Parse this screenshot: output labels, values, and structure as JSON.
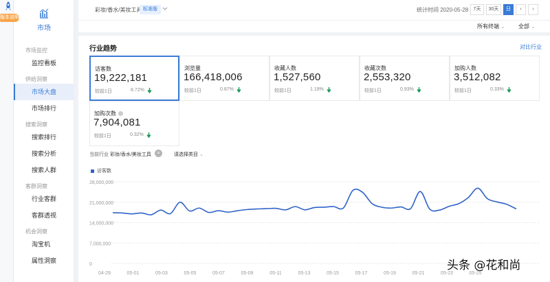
{
  "nav": {
    "version_badge": "版本说明",
    "market_label": "市场",
    "sections": [
      {
        "label": "市场监控",
        "items": [
          {
            "label": "监控看板",
            "active": false
          }
        ]
      },
      {
        "label": "供给洞察",
        "items": [
          {
            "label": "市场大盘",
            "active": true
          },
          {
            "label": "市场排行",
            "active": false
          }
        ]
      },
      {
        "label": "搜索洞察",
        "items": [
          {
            "label": "搜索排行",
            "active": false
          },
          {
            "label": "搜索分析",
            "active": false
          },
          {
            "label": "搜索人群",
            "active": false
          }
        ]
      },
      {
        "label": "客群洞察",
        "items": [
          {
            "label": "行业客群",
            "active": false
          },
          {
            "label": "客群透视",
            "active": false
          }
        ]
      },
      {
        "label": "机会洞察",
        "items": [
          {
            "label": "淘宝机",
            "active": false
          },
          {
            "label": "属性洞察",
            "active": false
          }
        ]
      }
    ]
  },
  "topbar": {
    "category_path": "彩妆/香水/美妆工具",
    "edition": "标准版",
    "stat_time": "统计时间 2020-05-28",
    "ranges": [
      {
        "label": "7天",
        "active": false
      },
      {
        "label": "30天",
        "active": false
      },
      {
        "label": "日",
        "active": true
      }
    ],
    "prev": "‹",
    "next": "›",
    "terminal": "所有终端",
    "scope": "全部"
  },
  "panel": {
    "title": "行业趋势",
    "compare_link": "对比行业",
    "metrics": [
      {
        "label": "访客数",
        "value": "19,222,181",
        "compare": "较前1日",
        "pct": "8.72%",
        "active": true,
        "info": false
      },
      {
        "label": "浏览量",
        "value": "166,418,006",
        "compare": "较前1日",
        "pct": "0.87%",
        "active": false,
        "info": false
      },
      {
        "label": "收藏人数",
        "value": "1,527,560",
        "compare": "较前1日",
        "pct": "1.19%",
        "active": false,
        "info": false
      },
      {
        "label": "收藏次数",
        "value": "2,553,320",
        "compare": "较前1日",
        "pct": "0.93%",
        "active": false,
        "info": false
      },
      {
        "label": "加购人数",
        "value": "3,512,082",
        "compare": "较前1日",
        "pct": "0.33%",
        "active": false,
        "info": false
      },
      {
        "label": "加购次数",
        "value": "7,904,081",
        "compare": "较前1日",
        "pct": "0.32%",
        "active": false,
        "info": true
      }
    ],
    "current_label": "当前行业",
    "current_category": "彩妆/香水/美妆工具",
    "clear_icon": "×",
    "category_select": "请选择类目",
    "legend": "访客数"
  },
  "colors": {
    "accent": "#3a7bd5",
    "line": "#2f62c8",
    "down": "#1a9a56"
  },
  "chart_data": {
    "type": "line",
    "series": [
      {
        "name": "访客数",
        "values": [
          17400000,
          17300000,
          17000000,
          17300000,
          16700000,
          18300000,
          17100000,
          21000000,
          18000000,
          19000000,
          17500000,
          18100000,
          17600000,
          18100000,
          18500000,
          18700000,
          18800000,
          18900000,
          18400000,
          19500000,
          18400000,
          19200000,
          19300000,
          19500000,
          19000000,
          25100000,
          24400000,
          20500000,
          19300000,
          19000000,
          19400000,
          18800000,
          24700000,
          18600000,
          18300000,
          19600000,
          20500000,
          22600000,
          25800000,
          22200000,
          21100000,
          20300000,
          18700000
        ]
      }
    ],
    "x_ticks": [
      "04-29",
      "05-01",
      "05-03",
      "05-05",
      "05-07",
      "05-09",
      "05-11",
      "05-13",
      "05-15",
      "05-17",
      "05-19",
      "05-21",
      "05-23",
      "05-25"
    ],
    "y_ticks": [
      "28,000,000",
      "21,000,000",
      "14,000,000",
      "7,000,000",
      "0"
    ],
    "ylim": [
      0,
      28000000
    ]
  },
  "watermark": "头条 @花和尚"
}
